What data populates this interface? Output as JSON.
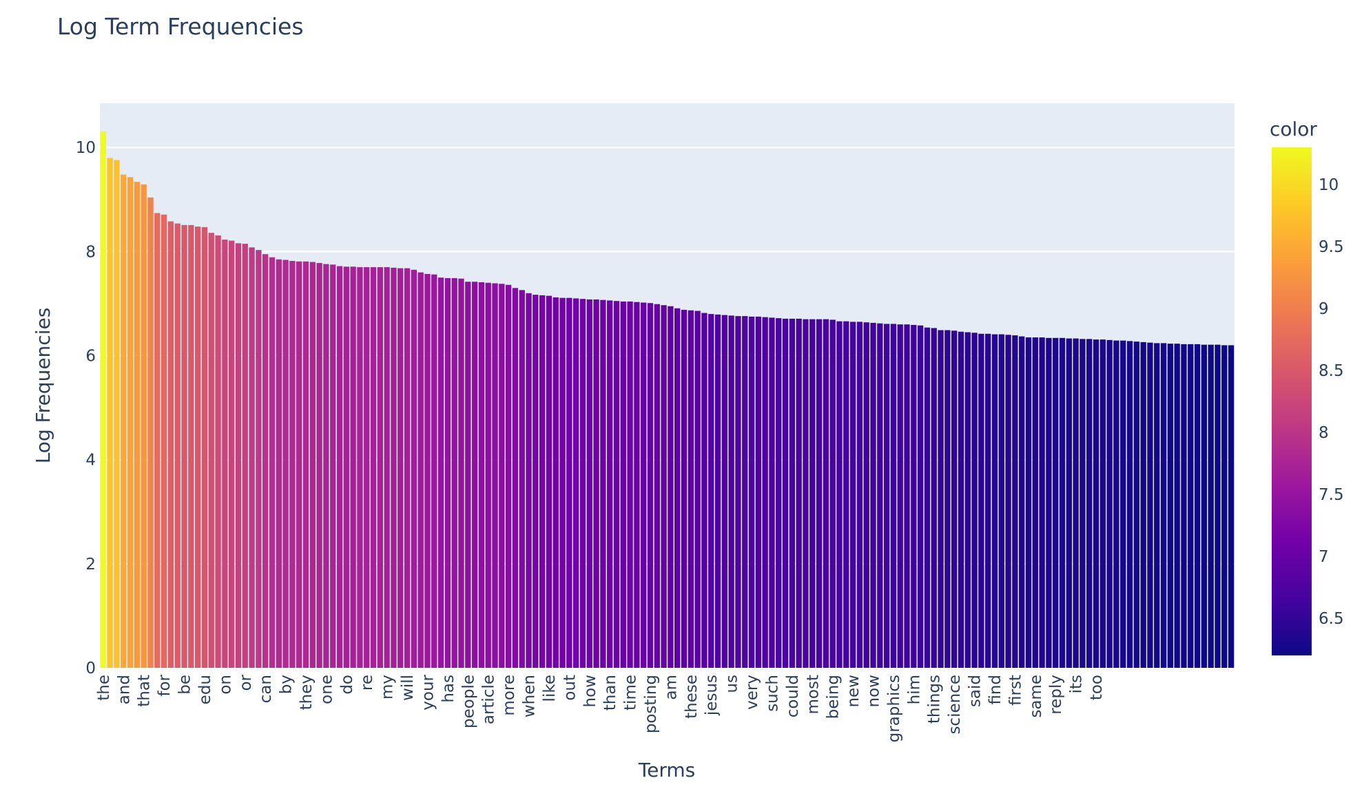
{
  "chart_data": {
    "type": "bar",
    "title": "Log Term Frequencies",
    "xlabel": "Terms",
    "ylabel": "Log Frequencies",
    "ylim": [
      0,
      10.85
    ],
    "yticks": [
      0,
      2,
      4,
      6,
      8,
      10
    ],
    "grid": true,
    "legend": "none",
    "colorbar": {
      "title": "color",
      "range": [
        6.2,
        10.3
      ],
      "ticks": [
        6.5,
        7,
        7.5,
        8,
        8.5,
        9,
        9.5,
        10
      ],
      "colorscale": [
        "#0d0887",
        "#46039f",
        "#7201a8",
        "#9c179e",
        "#bd3786",
        "#d8576b",
        "#ed7953",
        "#fb9f3a",
        "#fdca26",
        "#f0f921"
      ]
    },
    "labeled_terms": [
      "the",
      "and",
      "that",
      "for",
      "be",
      "edu",
      "on",
      "or",
      "can",
      "by",
      "they",
      "one",
      "do",
      "re",
      "my",
      "will",
      "your",
      "has",
      "people",
      "article",
      "more",
      "when",
      "like",
      "out",
      "how",
      "than",
      "time",
      "posting",
      "am",
      "these",
      "jesus",
      "us",
      "very",
      "such",
      "could",
      "most",
      "being",
      "new",
      "now",
      "graphics",
      "him",
      "things",
      "science",
      "said",
      "find",
      "first",
      "same",
      "reply",
      "its",
      "too"
    ],
    "values": [
      10.31,
      9.8,
      9.76,
      9.48,
      9.43,
      9.34,
      9.29,
      9.04,
      8.74,
      8.71,
      8.58,
      8.54,
      8.51,
      8.51,
      8.48,
      8.47,
      8.36,
      8.31,
      8.23,
      8.21,
      8.16,
      8.15,
      8.08,
      8.03,
      7.95,
      7.89,
      7.85,
      7.84,
      7.82,
      7.81,
      7.81,
      7.8,
      7.78,
      7.76,
      7.75,
      7.72,
      7.71,
      7.71,
      7.7,
      7.7,
      7.7,
      7.7,
      7.7,
      7.69,
      7.68,
      7.68,
      7.65,
      7.6,
      7.57,
      7.56,
      7.5,
      7.49,
      7.49,
      7.48,
      7.42,
      7.42,
      7.41,
      7.4,
      7.39,
      7.38,
      7.36,
      7.3,
      7.26,
      7.2,
      7.17,
      7.16,
      7.15,
      7.12,
      7.11,
      7.11,
      7.1,
      7.09,
      7.08,
      7.08,
      7.07,
      7.06,
      7.05,
      7.04,
      7.04,
      7.03,
      7.02,
      7.01,
      6.99,
      6.97,
      6.95,
      6.91,
      6.88,
      6.87,
      6.86,
      6.82,
      6.8,
      6.79,
      6.78,
      6.77,
      6.76,
      6.76,
      6.75,
      6.75,
      6.74,
      6.73,
      6.72,
      6.71,
      6.71,
      6.71,
      6.7,
      6.7,
      6.7,
      6.7,
      6.69,
      6.66,
      6.66,
      6.65,
      6.65,
      6.64,
      6.63,
      6.62,
      6.61,
      6.61,
      6.6,
      6.6,
      6.59,
      6.58,
      6.54,
      6.53,
      6.49,
      6.49,
      6.48,
      6.46,
      6.45,
      6.44,
      6.42,
      6.42,
      6.41,
      6.41,
      6.4,
      6.39,
      6.37,
      6.35,
      6.35,
      6.35,
      6.34,
      6.34,
      6.34,
      6.33,
      6.33,
      6.32,
      6.32,
      6.31,
      6.31,
      6.3,
      6.29,
      6.29,
      6.28,
      6.27,
      6.26,
      6.25,
      6.24,
      6.24,
      6.23,
      6.23,
      6.22,
      6.22,
      6.22,
      6.21,
      6.21,
      6.21,
      6.2,
      6.2
    ]
  }
}
